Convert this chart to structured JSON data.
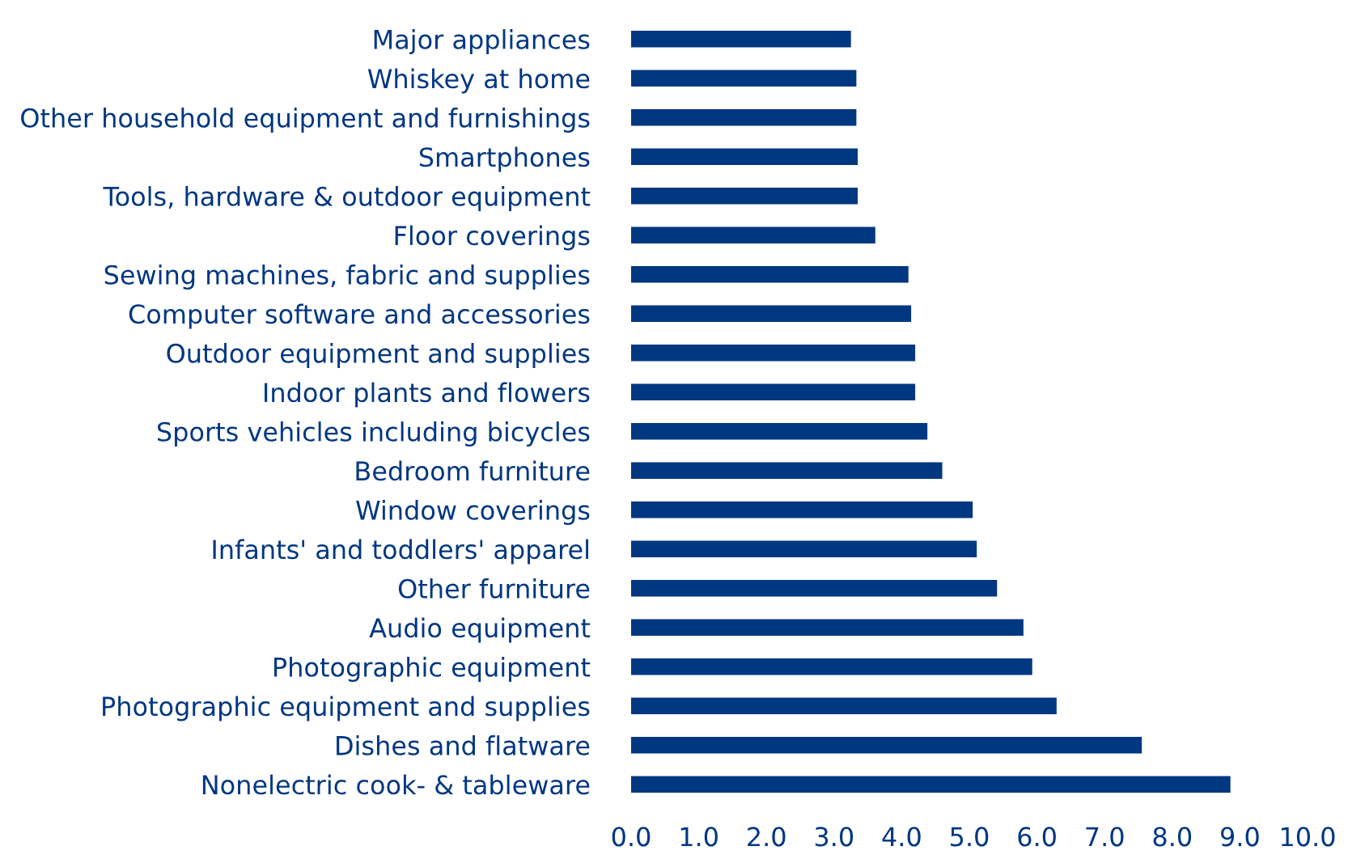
{
  "chart_data": {
    "type": "bar",
    "orientation": "horizontal",
    "color": "#003781",
    "categories": [
      "Major appliances",
      "Whiskey at home",
      "Other household equipment and furnishings",
      "Smartphones",
      "Tools, hardware & outdoor equipment",
      "Floor coverings",
      "Sewing machines, fabric and supplies",
      "Computer software and accessories",
      "Outdoor equipment and supplies",
      "Indoor plants and flowers",
      "Sports vehicles including bicycles",
      "Bedroom furniture",
      "Window coverings",
      "Infants' and toddlers' apparel",
      "Other furniture",
      "Audio equipment",
      "Photographic equipment",
      "Photographic equipment and supplies",
      "Dishes and flatware",
      "Nonelectric cook- & tableware"
    ],
    "values": [
      3.25,
      3.33,
      3.33,
      3.35,
      3.35,
      3.61,
      4.1,
      4.14,
      4.2,
      4.2,
      4.38,
      4.6,
      5.05,
      5.11,
      5.41,
      5.8,
      5.93,
      6.29,
      7.55,
      8.86
    ],
    "xlim": [
      0,
      10
    ],
    "xticks": [
      {
        "value": 0,
        "label": "0.0"
      },
      {
        "value": 1,
        "label": "1.0"
      },
      {
        "value": 2,
        "label": "2.0"
      },
      {
        "value": 3,
        "label": "3.0"
      },
      {
        "value": 4,
        "label": "4.0"
      },
      {
        "value": 5,
        "label": "5.0"
      },
      {
        "value": 6,
        "label": "6.0"
      },
      {
        "value": 7,
        "label": "7.0"
      },
      {
        "value": 8,
        "label": "8.0"
      },
      {
        "value": 9,
        "label": "9.0"
      },
      {
        "value": 10,
        "label": "10.0"
      }
    ],
    "grid": false,
    "legend": false
  }
}
